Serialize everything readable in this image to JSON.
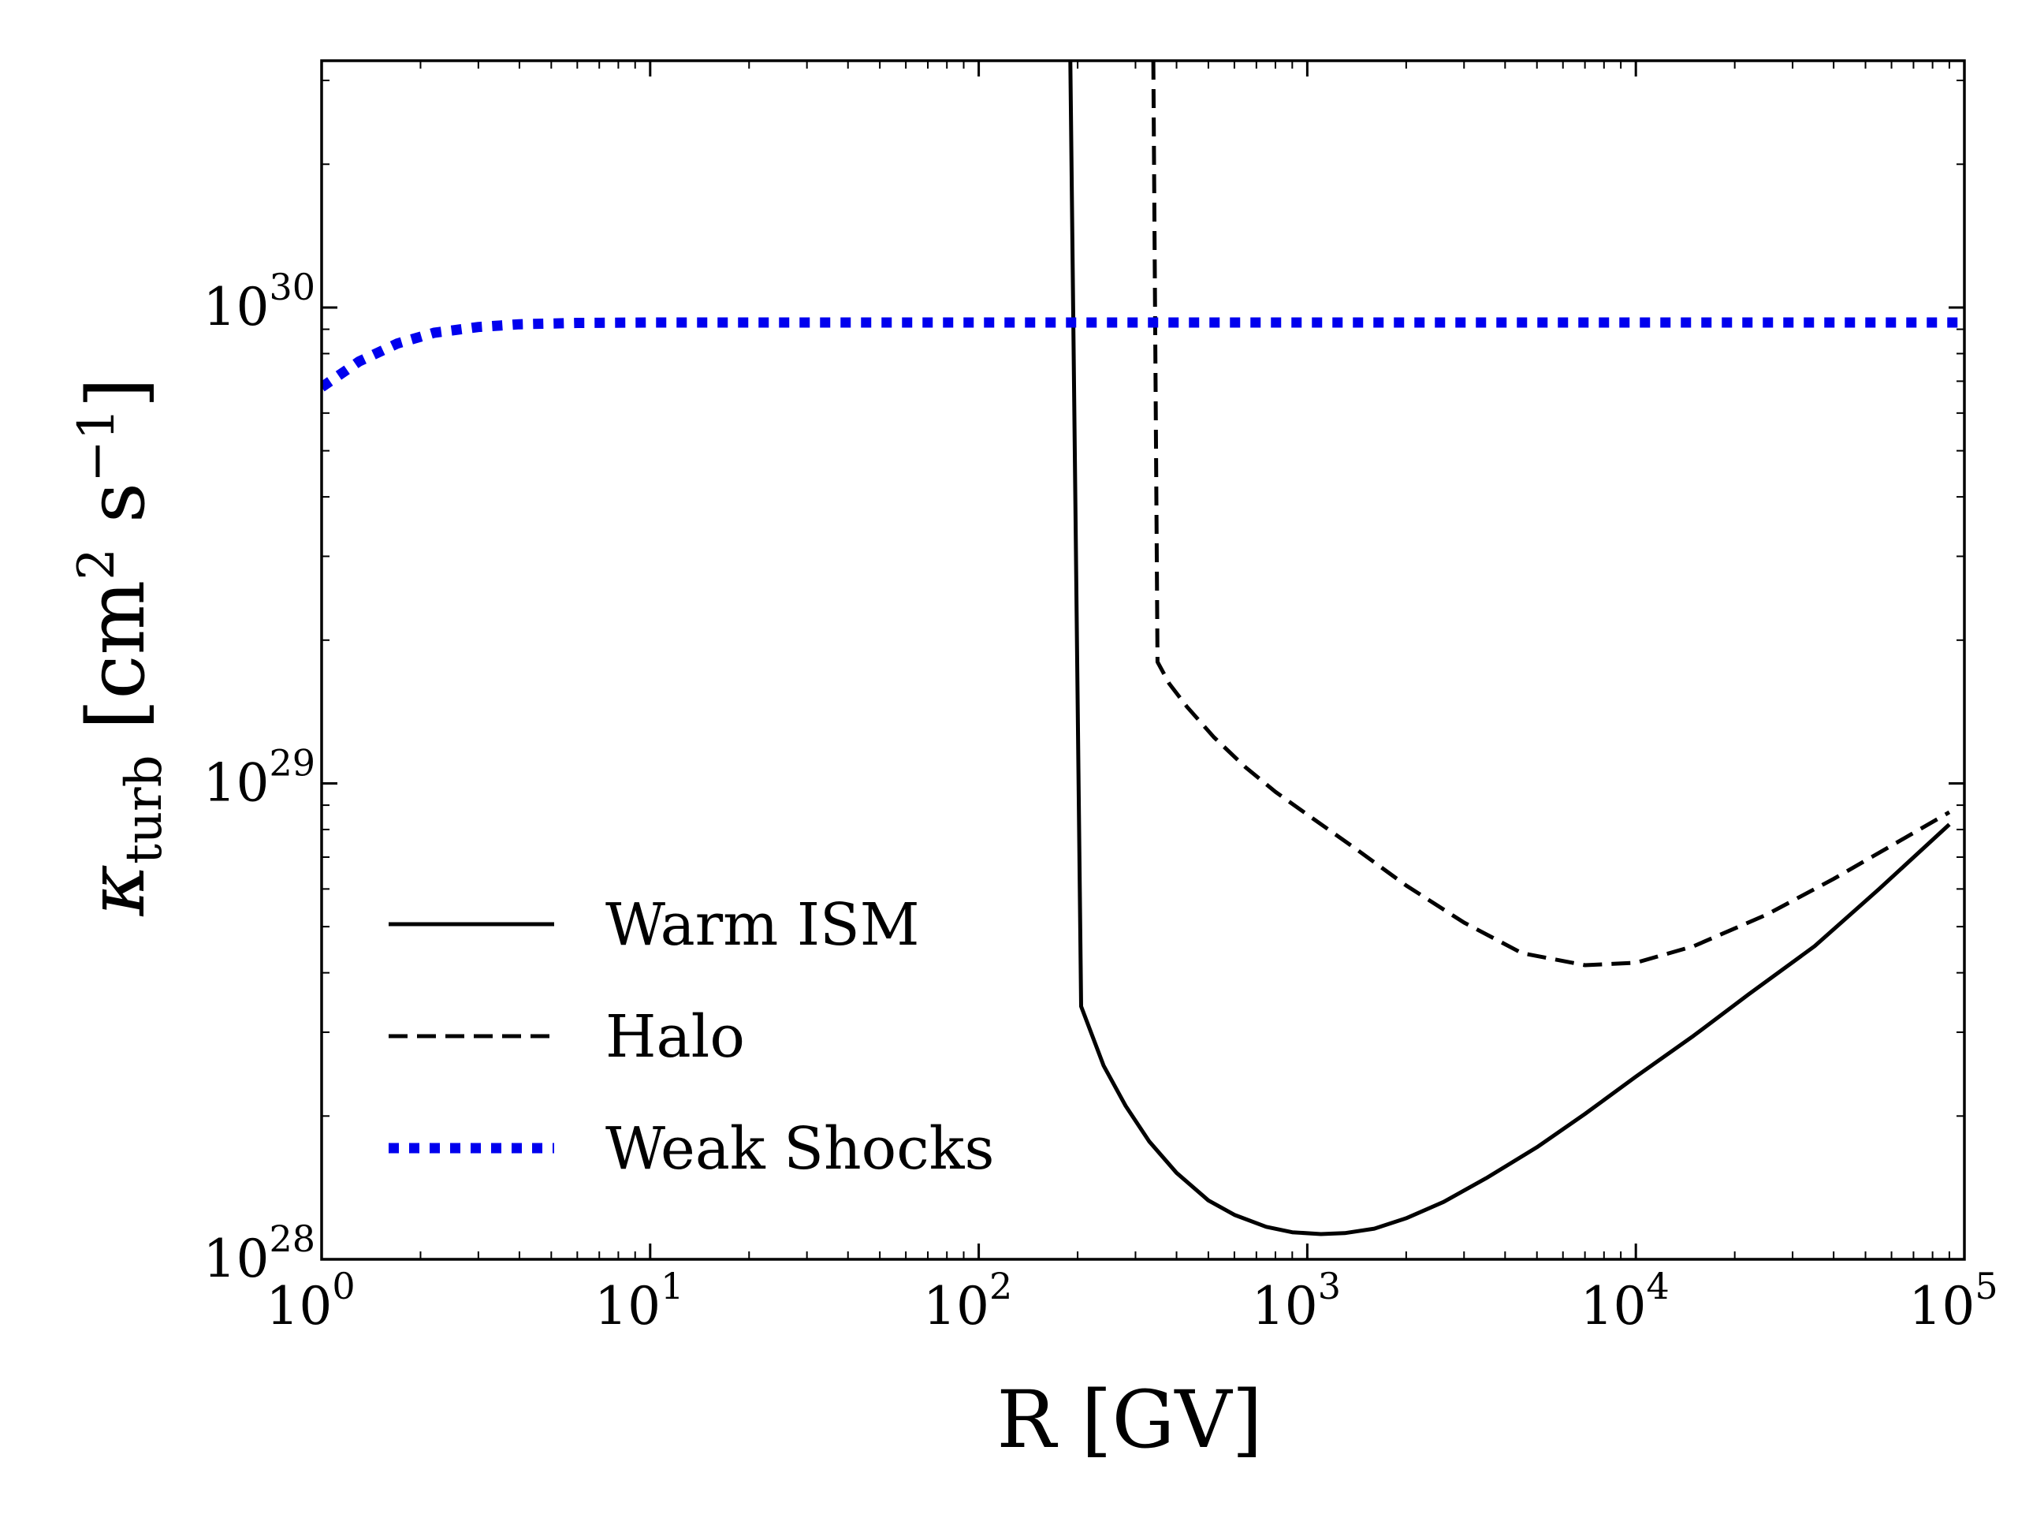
{
  "chart_data": {
    "type": "line",
    "title": "",
    "xscale": "log",
    "yscale": "log",
    "xlim": [
      1,
      100000
    ],
    "ylim": [
      1e+28,
      3.3e+30
    ],
    "xlabel": "R [GV]",
    "ylabel": {
      "main": "κ",
      "sub": "turb",
      "units_open": " [cm",
      "units_exp1": "2",
      "units_mid": " s",
      "units_exp2": "−1",
      "units_close": "]"
    },
    "x_ticks": [
      {
        "value": 1,
        "base": "10",
        "exp": "0"
      },
      {
        "value": 10,
        "base": "10",
        "exp": "1"
      },
      {
        "value": 100,
        "base": "10",
        "exp": "2"
      },
      {
        "value": 1000,
        "base": "10",
        "exp": "3"
      },
      {
        "value": 10000,
        "base": "10",
        "exp": "4"
      },
      {
        "value": 100000,
        "base": "10",
        "exp": "5"
      }
    ],
    "y_ticks": [
      {
        "value": 1e+28,
        "base": "10",
        "exp": "28"
      },
      {
        "value": 1e+29,
        "base": "10",
        "exp": "29"
      },
      {
        "value": 1e+30,
        "base": "10",
        "exp": "30"
      }
    ],
    "legend_position": "lower-left",
    "series": [
      {
        "name": "Warm ISM",
        "style": "solid",
        "color": "#000000",
        "points": [
          [
            190,
            3.3e+30
          ],
          [
            205,
            3.4e+28
          ],
          [
            240,
            2.55e+28
          ],
          [
            280,
            2.1e+28
          ],
          [
            330,
            1.77e+28
          ],
          [
            400,
            1.52e+28
          ],
          [
            500,
            1.33e+28
          ],
          [
            600,
            1.24e+28
          ],
          [
            750,
            1.17e+28
          ],
          [
            900,
            1.14e+28
          ],
          [
            1100,
            1.13e+28
          ],
          [
            1300,
            1.135e+28
          ],
          [
            1600,
            1.16e+28
          ],
          [
            2000,
            1.22e+28
          ],
          [
            2600,
            1.32e+28
          ],
          [
            3500,
            1.48e+28
          ],
          [
            5000,
            1.72e+28
          ],
          [
            7000,
            2.02e+28
          ],
          [
            10000,
            2.42e+28
          ],
          [
            15000,
            2.95e+28
          ],
          [
            22000,
            3.6e+28
          ],
          [
            35000,
            4.55e+28
          ],
          [
            55000,
            6e+28
          ],
          [
            90000,
            8.2e+28
          ]
        ]
      },
      {
        "name": "Halo",
        "style": "dashed",
        "color": "#000000",
        "points": [
          [
            340,
            3.3e+30
          ],
          [
            350,
            1.8e+29
          ],
          [
            380,
            1.62e+29
          ],
          [
            430,
            1.45e+29
          ],
          [
            520,
            1.25e+29
          ],
          [
            650,
            1.08e+29
          ],
          [
            800,
            9.6e+28
          ],
          [
            1000,
            8.6e+28
          ],
          [
            1400,
            7.3e+28
          ],
          [
            2000,
            6.1e+28
          ],
          [
            3000,
            5.1e+28
          ],
          [
            4500,
            4.4e+28
          ],
          [
            7000,
            4.15e+28
          ],
          [
            10000,
            4.2e+28
          ],
          [
            15000,
            4.55e+28
          ],
          [
            25000,
            5.3e+28
          ],
          [
            40000,
            6.3e+28
          ],
          [
            60000,
            7.4e+28
          ],
          [
            90000,
            8.7e+28
          ]
        ]
      },
      {
        "name": "Weak Shocks",
        "style": "dotted",
        "color": "#0000ee",
        "points": [
          [
            1,
            6.8e+29
          ],
          [
            1.3,
            7.7e+29
          ],
          [
            1.7,
            8.4e+29
          ],
          [
            2.2,
            8.85e+29
          ],
          [
            3,
            9.1e+29
          ],
          [
            4,
            9.22e+29
          ],
          [
            6,
            9.28e+29
          ],
          [
            10,
            9.3e+29
          ],
          [
            100,
            9.3e+29
          ],
          [
            1000,
            9.3e+29
          ],
          [
            10000,
            9.3e+29
          ],
          [
            100000,
            9.3e+29
          ]
        ]
      }
    ]
  }
}
